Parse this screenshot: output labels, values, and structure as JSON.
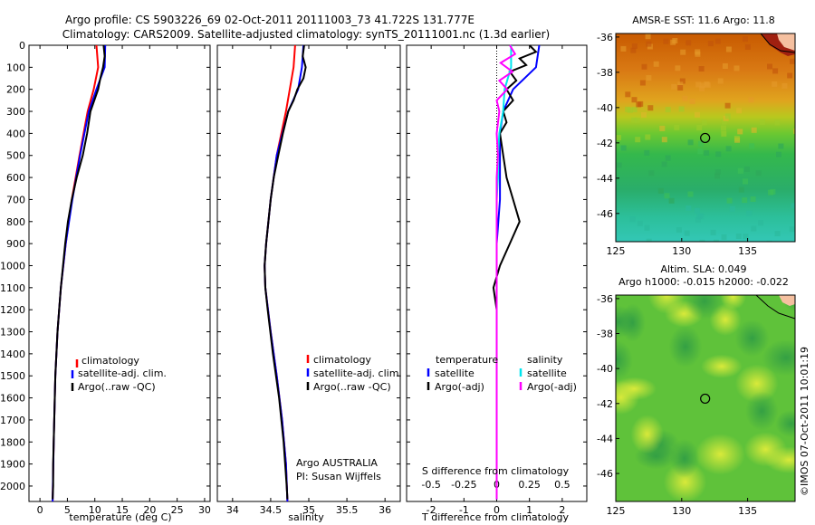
{
  "header": {
    "line1": "Argo profile: CS 5903226_69 02-Oct-2011 20111003_73 41.722S 131.777E",
    "line2": "Climatology: CARS2009. Satellite-adjusted climatology: synTS_20111001.nc (1.3d earlier)"
  },
  "colors": {
    "climatology": "#ff0000",
    "satellite": "#0000ff",
    "argo": "#000000",
    "satellite_s": "#00e5ee",
    "argo_s": "#ff00ff"
  },
  "chart_data": [
    {
      "type": "line",
      "id": "temperature",
      "xlabel": "temperature (deg C)",
      "ylabel": "",
      "xlim": [
        -2,
        31
      ],
      "ylim": [
        2070,
        0
      ],
      "xticks": [
        0,
        5,
        10,
        15,
        20,
        25,
        30
      ],
      "yticks": [
        0,
        100,
        200,
        300,
        400,
        500,
        600,
        700,
        800,
        900,
        1000,
        1100,
        1200,
        1300,
        1400,
        1500,
        1600,
        1700,
        1800,
        1900,
        2000
      ],
      "legend": [
        "climatology",
        "satellite-adj. clim.",
        "Argo(..raw -QC)"
      ],
      "series": [
        {
          "name": "climatology",
          "depth": [
            0,
            100,
            200,
            300,
            500,
            700,
            900,
            1100,
            1300,
            1500,
            1800,
            2070
          ],
          "values": [
            10.3,
            10.6,
            9.8,
            8.7,
            7.2,
            5.8,
            4.7,
            3.8,
            3.2,
            2.8,
            2.5,
            2.3
          ]
        },
        {
          "name": "satellite-adj. clim.",
          "depth": [
            0,
            100,
            200,
            300,
            500,
            700,
            900,
            1100,
            1300,
            1500,
            1800,
            2070
          ],
          "values": [
            11.9,
            11.8,
            10.3,
            8.9,
            7.3,
            5.9,
            4.7,
            3.8,
            3.2,
            2.8,
            2.5,
            2.3
          ]
        },
        {
          "name": "Argo(..raw -QC)",
          "depth": [
            0,
            50,
            100,
            150,
            200,
            300,
            400,
            500,
            600,
            700,
            800,
            900,
            1000,
            1100,
            1200,
            1300,
            1400,
            1500,
            1600,
            1700,
            1800,
            1900,
            2000,
            2060
          ],
          "values": [
            11.6,
            11.8,
            11.5,
            11.0,
            10.6,
            9.2,
            8.6,
            7.8,
            6.7,
            5.8,
            5.1,
            4.6,
            4.2,
            3.8,
            3.5,
            3.2,
            3.0,
            2.8,
            2.7,
            2.6,
            2.5,
            2.4,
            2.4,
            2.3
          ]
        }
      ]
    },
    {
      "type": "line",
      "id": "salinity",
      "xlabel": "salinity",
      "ylabel": "",
      "xlim": [
        33.8,
        36.2
      ],
      "ylim": [
        2070,
        0
      ],
      "xticks": [
        34,
        34.5,
        35,
        35.5,
        36
      ],
      "legend": [
        "climatology",
        "satellite-adj. clim.",
        "Argo(..raw -QC)"
      ],
      "annotation": [
        "Argo AUSTRALIA",
        "PI: Susan Wijffels"
      ],
      "series": [
        {
          "name": "climatology",
          "depth": [
            0,
            100,
            200,
            300,
            500,
            700,
            900,
            1000,
            1100,
            1300,
            1500,
            1700,
            1900,
            2070
          ],
          "values": [
            34.82,
            34.8,
            34.75,
            34.7,
            34.58,
            34.5,
            34.44,
            34.42,
            34.43,
            34.5,
            34.58,
            34.65,
            34.7,
            34.72
          ]
        },
        {
          "name": "satellite-adj. clim.",
          "depth": [
            0,
            100,
            200,
            300,
            500,
            700,
            900,
            1000,
            1100,
            1300,
            1500,
            1700,
            1900,
            2070
          ],
          "values": [
            34.93,
            34.91,
            34.86,
            34.73,
            34.58,
            34.5,
            34.44,
            34.42,
            34.43,
            34.5,
            34.58,
            34.65,
            34.7,
            34.72
          ]
        },
        {
          "name": "Argo(..raw -QC)",
          "depth": [
            0,
            50,
            100,
            150,
            200,
            250,
            300,
            400,
            500,
            600,
            700,
            800,
            900,
            1000,
            1100,
            1200,
            1400,
            1600,
            1800,
            2000,
            2060
          ],
          "values": [
            34.94,
            34.92,
            34.96,
            34.93,
            34.85,
            34.8,
            34.73,
            34.66,
            34.6,
            34.54,
            34.5,
            34.47,
            34.44,
            34.42,
            34.43,
            34.46,
            34.53,
            34.61,
            34.67,
            34.71,
            34.72
          ]
        }
      ]
    },
    {
      "type": "line",
      "id": "difference",
      "xlabel": "T difference from climatology",
      "x2label": "S difference from climatology",
      "xlim": [
        -2.75,
        2.75
      ],
      "ylim": [
        2070,
        0
      ],
      "xticks": [
        -2,
        -1,
        0,
        1,
        2
      ],
      "x2ticks": [
        "-0.5",
        "-0.25",
        "0",
        "0.25",
        "0.5"
      ],
      "legend_titles": [
        "temperature",
        "salinity"
      ],
      "legend": [
        "satellite",
        "Argo(-adj)",
        "satellite",
        "Argo(-adj)"
      ],
      "series": [
        {
          "name": "T satellite",
          "depth": [
            0,
            100,
            200,
            300,
            400,
            500,
            700,
            800,
            900,
            1000,
            1200,
            1500,
            2000,
            2060
          ],
          "values": [
            1.3,
            1.2,
            0.5,
            0.2,
            0.1,
            0.1,
            0.1,
            0.05,
            0.0,
            0.0,
            0.0,
            0.0,
            0.0,
            0.0
          ]
        },
        {
          "name": "T Argo(-adj)",
          "depth": [
            0,
            30,
            60,
            90,
            120,
            160,
            200,
            250,
            300,
            350,
            400,
            500,
            600,
            700,
            800,
            900,
            1000,
            1100,
            1200,
            1300,
            1500,
            1700,
            2000,
            2060
          ],
          "values": [
            1.0,
            1.2,
            0.7,
            0.9,
            0.4,
            0.6,
            0.3,
            0.5,
            0.2,
            0.3,
            0.1,
            0.2,
            0.3,
            0.5,
            0.7,
            0.4,
            0.1,
            -0.1,
            0.0,
            0.0,
            0.0,
            0.0,
            0.0,
            0.0
          ]
        },
        {
          "name": "S satellite",
          "depth": [
            0,
            100,
            200,
            300,
            400,
            500,
            600,
            700,
            800,
            1000,
            1200,
            1500,
            2000,
            2060
          ],
          "values": [
            0.11,
            0.11,
            0.06,
            0.05,
            0.02,
            0.01,
            0.01,
            0.0,
            0.0,
            0.0,
            0.0,
            0.0,
            0.0,
            0.0
          ]
        },
        {
          "name": "S Argo(-adj)",
          "depth": [
            0,
            40,
            80,
            120,
            160,
            200,
            250,
            300,
            400,
            500,
            600,
            800,
            1000,
            1200,
            1500,
            2000,
            2060
          ],
          "values": [
            0.1,
            0.14,
            0.03,
            0.12,
            0.02,
            0.08,
            0.0,
            0.02,
            0.0,
            0.01,
            0.0,
            0.0,
            0.0,
            0.0,
            0.0,
            0.0,
            0.0
          ]
        }
      ]
    },
    {
      "type": "heatmap",
      "id": "sst-map",
      "title": "AMSR-E SST: 11.6 Argo: 11.8",
      "xticks": [
        125,
        130,
        135
      ],
      "yticks": [
        -36,
        -38,
        -40,
        -42,
        -44,
        -46
      ],
      "xlim": [
        125,
        138.6
      ],
      "ylim": [
        -47.6,
        -35.8
      ],
      "marker": {
        "lon": 131.777,
        "lat": -41.722
      }
    },
    {
      "type": "heatmap",
      "id": "sla-map",
      "title": "Altim. SLA: 0.049",
      "subtitle": "Argo h1000: -0.015 h2000: -0.022",
      "xticks": [
        125,
        130,
        135
      ],
      "yticks": [
        -36,
        -38,
        -40,
        -42,
        -44,
        -46
      ],
      "xlim": [
        125,
        138.6
      ],
      "ylim": [
        -47.6,
        -35.8
      ],
      "marker": {
        "lon": 131.777,
        "lat": -41.722
      }
    }
  ],
  "watermark": "©IMOS 07-Oct-2011 10:01:19"
}
